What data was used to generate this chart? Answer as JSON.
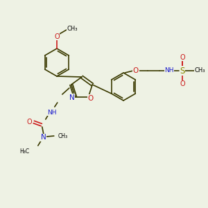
{
  "bg_color": "#eef2e4",
  "bond_color": "#3a3a00",
  "bond_width": 1.2,
  "N_color": "#1a1acc",
  "O_color": "#cc1a1a",
  "S_color": "#888800",
  "text_color": "#000000",
  "figsize": [
    3.0,
    3.0
  ],
  "dpi": 100,
  "xlim": [
    0,
    300
  ],
  "ylim": [
    0,
    300
  ]
}
